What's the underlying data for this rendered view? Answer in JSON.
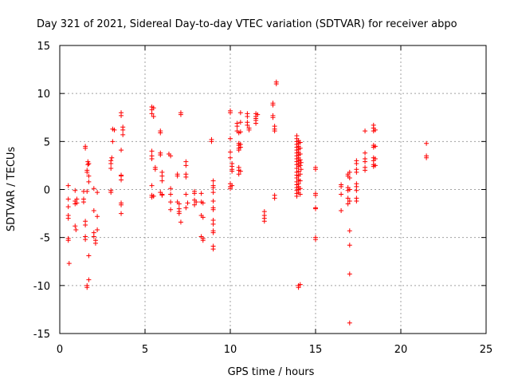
{
  "chart_data": {
    "type": "scatter",
    "title": "Day 321 of 2021, Sidereal Day-to-day VTEC variation (SDTVAR) for receiver abpo",
    "xlabel": "GPS time / hours",
    "ylabel": "SDTVAR / TECUs",
    "xlim": [
      0,
      25
    ],
    "ylim": [
      -15,
      15
    ],
    "xticks": [
      0,
      5,
      10,
      15,
      20,
      25
    ],
    "yticks": [
      -15,
      -10,
      -5,
      0,
      5,
      10,
      15
    ],
    "grid": true,
    "marker": "plus",
    "color": "#ff0000",
    "series": [
      {
        "name": "SDTVAR",
        "points": [
          [
            0.5,
            0.4
          ],
          [
            0.5,
            -1.0
          ],
          [
            0.5,
            -1.8
          ],
          [
            0.5,
            -2.7
          ],
          [
            0.5,
            -3.0
          ],
          [
            0.5,
            -5.1
          ],
          [
            0.5,
            -5.3
          ],
          [
            0.55,
            -7.7
          ],
          [
            0.9,
            -0.1
          ],
          [
            0.9,
            -1.2
          ],
          [
            0.9,
            -1.5
          ],
          [
            0.9,
            -3.8
          ],
          [
            0.95,
            -4.2
          ],
          [
            1.0,
            -1.0
          ],
          [
            1.0,
            -1.4
          ],
          [
            1.4,
            -0.2
          ],
          [
            1.4,
            -1.0
          ],
          [
            1.4,
            -1.3
          ],
          [
            1.5,
            -3.3
          ],
          [
            1.5,
            -3.7
          ],
          [
            1.5,
            -4.9
          ],
          [
            1.5,
            -5.2
          ],
          [
            1.5,
            4.5
          ],
          [
            1.5,
            4.3
          ],
          [
            1.6,
            -0.2
          ],
          [
            1.6,
            -10.0
          ],
          [
            1.6,
            -10.2
          ],
          [
            1.6,
            1.8
          ],
          [
            1.6,
            2.0
          ],
          [
            1.65,
            2.6
          ],
          [
            1.65,
            2.9
          ],
          [
            1.7,
            -9.4
          ],
          [
            1.7,
            -6.9
          ],
          [
            1.7,
            0.8
          ],
          [
            1.7,
            1.4
          ],
          [
            1.7,
            2.7
          ],
          [
            2.0,
            -2.2
          ],
          [
            2.0,
            -4.5
          ],
          [
            2.0,
            -4.9
          ],
          [
            2.1,
            -5.3
          ],
          [
            2.1,
            -5.6
          ],
          [
            2.2,
            -2.8
          ],
          [
            2.2,
            -4.2
          ],
          [
            2.0,
            0.1
          ],
          [
            2.2,
            -0.3
          ],
          [
            3.0,
            -0.3
          ],
          [
            3.0,
            -0.1
          ],
          [
            3.0,
            2.2
          ],
          [
            3.0,
            2.7
          ],
          [
            3.0,
            3.0
          ],
          [
            3.05,
            3.3
          ],
          [
            3.1,
            5.0
          ],
          [
            3.1,
            6.3
          ],
          [
            3.2,
            6.2
          ],
          [
            3.6,
            7.7
          ],
          [
            3.6,
            8.0
          ],
          [
            3.6,
            4.1
          ],
          [
            3.6,
            1.5
          ],
          [
            3.6,
            1.4
          ],
          [
            3.6,
            1.0
          ],
          [
            3.6,
            -1.4
          ],
          [
            3.6,
            -1.6
          ],
          [
            3.6,
            -2.5
          ],
          [
            3.7,
            5.7
          ],
          [
            3.7,
            6.2
          ],
          [
            3.7,
            6.5
          ],
          [
            5.4,
            8.6
          ],
          [
            5.4,
            8.3
          ],
          [
            5.4,
            7.9
          ],
          [
            5.5,
            7.6
          ],
          [
            5.5,
            8.5
          ],
          [
            5.6,
            2.3
          ],
          [
            5.6,
            2.1
          ],
          [
            5.4,
            3.5
          ],
          [
            5.4,
            3.2
          ],
          [
            5.4,
            4.0
          ],
          [
            5.4,
            0.4
          ],
          [
            5.4,
            -0.6
          ],
          [
            5.4,
            -0.8
          ],
          [
            5.5,
            -0.7
          ],
          [
            5.9,
            6.1
          ],
          [
            5.9,
            5.9
          ],
          [
            5.9,
            3.8
          ],
          [
            5.9,
            3.6
          ],
          [
            6.0,
            1.8
          ],
          [
            6.0,
            1.4
          ],
          [
            6.0,
            0.9
          ],
          [
            5.9,
            -0.3
          ],
          [
            6.0,
            -0.5
          ],
          [
            6.0,
            -0.6
          ],
          [
            6.4,
            3.7
          ],
          [
            6.5,
            3.5
          ],
          [
            6.5,
            0.1
          ],
          [
            6.5,
            -0.5
          ],
          [
            6.5,
            -1.3
          ],
          [
            6.5,
            -2.1
          ],
          [
            6.9,
            1.6
          ],
          [
            6.9,
            1.4
          ],
          [
            6.9,
            -1.3
          ],
          [
            7.0,
            -1.5
          ],
          [
            7.0,
            -2.0
          ],
          [
            7.0,
            -2.3
          ],
          [
            7.0,
            -2.5
          ],
          [
            7.1,
            -3.4
          ],
          [
            7.1,
            7.8
          ],
          [
            7.1,
            8.0
          ],
          [
            7.4,
            2.5
          ],
          [
            7.4,
            2.9
          ],
          [
            7.4,
            1.6
          ],
          [
            7.4,
            1.3
          ],
          [
            7.4,
            -0.5
          ],
          [
            7.5,
            -1.4
          ],
          [
            7.4,
            -1.9
          ],
          [
            7.9,
            -0.4
          ],
          [
            7.9,
            -0.2
          ],
          [
            7.9,
            -1.1
          ],
          [
            8.0,
            -1.3
          ],
          [
            7.9,
            -1.6
          ],
          [
            8.3,
            -0.4
          ],
          [
            8.3,
            -1.3
          ],
          [
            8.4,
            -1.4
          ],
          [
            8.3,
            -2.7
          ],
          [
            8.4,
            -2.9
          ],
          [
            8.3,
            -4.9
          ],
          [
            8.4,
            -5.1
          ],
          [
            8.4,
            -5.3
          ],
          [
            8.9,
            5.2
          ],
          [
            8.9,
            5.0
          ],
          [
            9.0,
            0.9
          ],
          [
            9.0,
            0.4
          ],
          [
            9.0,
            0.2
          ],
          [
            9.0,
            -0.3
          ],
          [
            9.0,
            -1.2
          ],
          [
            9.0,
            -1.9
          ],
          [
            9.0,
            -2.1
          ],
          [
            9.0,
            -3.2
          ],
          [
            9.0,
            -3.6
          ],
          [
            9.0,
            -4.3
          ],
          [
            9.0,
            -4.5
          ],
          [
            9.0,
            -5.9
          ],
          [
            9.0,
            -6.2
          ],
          [
            10.0,
            8.2
          ],
          [
            10.0,
            8.0
          ],
          [
            10.0,
            5.3
          ],
          [
            10.0,
            3.9
          ],
          [
            10.0,
            3.3
          ],
          [
            10.1,
            2.7
          ],
          [
            10.1,
            2.4
          ],
          [
            10.1,
            2.1
          ],
          [
            10.1,
            1.9
          ],
          [
            10.0,
            0.6
          ],
          [
            10.0,
            0.3
          ],
          [
            10.0,
            0.1
          ],
          [
            10.1,
            0.4
          ],
          [
            10.4,
            6.9
          ],
          [
            10.4,
            6.6
          ],
          [
            10.4,
            6.1
          ],
          [
            10.5,
            5.9
          ],
          [
            10.5,
            4.8
          ],
          [
            10.5,
            4.6
          ],
          [
            10.5,
            4.3
          ],
          [
            10.5,
            4.1
          ],
          [
            10.6,
            4.4
          ],
          [
            10.6,
            4.7
          ],
          [
            10.6,
            6.0
          ],
          [
            10.6,
            8.0
          ],
          [
            10.5,
            2.3
          ],
          [
            10.5,
            2.0
          ],
          [
            10.5,
            1.6
          ],
          [
            10.6,
            1.9
          ],
          [
            10.6,
            7.0
          ],
          [
            11.0,
            7.9
          ],
          [
            11.0,
            7.6
          ],
          [
            11.0,
            7.0
          ],
          [
            11.0,
            6.7
          ],
          [
            11.1,
            6.4
          ],
          [
            11.1,
            6.2
          ],
          [
            11.5,
            7.9
          ],
          [
            11.5,
            7.6
          ],
          [
            11.5,
            7.4
          ],
          [
            11.5,
            7.2
          ],
          [
            11.5,
            6.9
          ],
          [
            11.6,
            7.8
          ],
          [
            12.0,
            -2.3
          ],
          [
            12.0,
            -2.7
          ],
          [
            12.0,
            -3.0
          ],
          [
            12.0,
            -3.3
          ],
          [
            12.5,
            9.0
          ],
          [
            12.5,
            8.8
          ],
          [
            12.5,
            7.7
          ],
          [
            12.5,
            7.5
          ],
          [
            12.6,
            6.3
          ],
          [
            12.6,
            6.1
          ],
          [
            12.6,
            6.6
          ],
          [
            12.7,
            11.2
          ],
          [
            12.7,
            11.0
          ],
          [
            12.6,
            -0.6
          ],
          [
            12.6,
            -0.9
          ],
          [
            13.9,
            5.6
          ],
          [
            13.9,
            5.3
          ],
          [
            13.9,
            5.0
          ],
          [
            13.9,
            4.7
          ],
          [
            13.9,
            4.4
          ],
          [
            13.9,
            4.1
          ],
          [
            13.9,
            3.8
          ],
          [
            13.9,
            3.5
          ],
          [
            13.9,
            3.2
          ],
          [
            13.9,
            2.9
          ],
          [
            13.9,
            2.6
          ],
          [
            13.9,
            2.2
          ],
          [
            13.9,
            1.8
          ],
          [
            13.9,
            1.5
          ],
          [
            13.9,
            1.2
          ],
          [
            13.9,
            0.8
          ],
          [
            13.9,
            0.5
          ],
          [
            13.9,
            0.2
          ],
          [
            13.9,
            -0.1
          ],
          [
            13.9,
            -0.4
          ],
          [
            13.9,
            -0.7
          ],
          [
            14.0,
            5.1
          ],
          [
            14.0,
            4.8
          ],
          [
            14.0,
            4.5
          ],
          [
            14.0,
            4.2
          ],
          [
            14.0,
            3.9
          ],
          [
            14.0,
            3.6
          ],
          [
            14.0,
            3.3
          ],
          [
            14.0,
            3.0
          ],
          [
            14.0,
            2.7
          ],
          [
            14.0,
            2.4
          ],
          [
            14.0,
            1.9
          ],
          [
            14.0,
            1.4
          ],
          [
            14.0,
            1.0
          ],
          [
            14.0,
            0.6
          ],
          [
            14.0,
            0.3
          ],
          [
            14.0,
            0.0
          ],
          [
            14.0,
            -0.3
          ],
          [
            14.0,
            -10.0
          ],
          [
            14.0,
            -10.2
          ],
          [
            14.1,
            4.9
          ],
          [
            14.1,
            4.3
          ],
          [
            14.1,
            3.7
          ],
          [
            14.1,
            3.1
          ],
          [
            14.1,
            2.5
          ],
          [
            14.1,
            1.6
          ],
          [
            14.1,
            0.9
          ],
          [
            14.1,
            0.1
          ],
          [
            14.1,
            -0.5
          ],
          [
            14.1,
            -9.9
          ],
          [
            14.15,
            2.8
          ],
          [
            14.15,
            2.1
          ],
          [
            15.0,
            2.3
          ],
          [
            15.0,
            2.1
          ],
          [
            15.0,
            -0.6
          ],
          [
            15.0,
            -0.4
          ],
          [
            15.0,
            -1.9
          ],
          [
            15.0,
            -2.0
          ],
          [
            15.0,
            -5.0
          ],
          [
            15.0,
            -5.2
          ],
          [
            16.5,
            0.5
          ],
          [
            16.5,
            0.3
          ],
          [
            16.5,
            -0.5
          ],
          [
            16.5,
            -2.2
          ],
          [
            16.9,
            1.6
          ],
          [
            16.9,
            1.4
          ],
          [
            16.9,
            0.2
          ],
          [
            16.9,
            -0.1
          ],
          [
            16.9,
            -0.9
          ],
          [
            16.9,
            -1.5
          ],
          [
            17.0,
            1.8
          ],
          [
            17.0,
            1.2
          ],
          [
            17.0,
            0.0
          ],
          [
            17.0,
            -1.2
          ],
          [
            17.0,
            -4.3
          ],
          [
            17.0,
            -5.8
          ],
          [
            17.0,
            -8.8
          ],
          [
            17.0,
            -13.9
          ],
          [
            17.4,
            3.0
          ],
          [
            17.4,
            2.7
          ],
          [
            17.4,
            2.1
          ],
          [
            17.4,
            1.8
          ],
          [
            17.4,
            0.6
          ],
          [
            17.4,
            0.3
          ],
          [
            17.4,
            -0.1
          ],
          [
            17.4,
            -0.9
          ],
          [
            17.4,
            -1.2
          ],
          [
            17.9,
            6.1
          ],
          [
            17.9,
            3.8
          ],
          [
            17.9,
            3.2
          ],
          [
            17.9,
            2.9
          ],
          [
            17.9,
            2.3
          ],
          [
            17.9,
            2.0
          ],
          [
            18.4,
            6.7
          ],
          [
            18.4,
            6.4
          ],
          [
            18.4,
            6.1
          ],
          [
            18.4,
            4.6
          ],
          [
            18.4,
            4.4
          ],
          [
            18.4,
            3.3
          ],
          [
            18.4,
            3.0
          ],
          [
            18.4,
            2.6
          ],
          [
            18.4,
            2.4
          ],
          [
            18.5,
            6.2
          ],
          [
            18.5,
            4.5
          ],
          [
            18.5,
            3.2
          ],
          [
            18.5,
            2.5
          ],
          [
            21.5,
            4.8
          ],
          [
            21.5,
            3.5
          ],
          [
            21.5,
            3.3
          ]
        ]
      }
    ]
  }
}
